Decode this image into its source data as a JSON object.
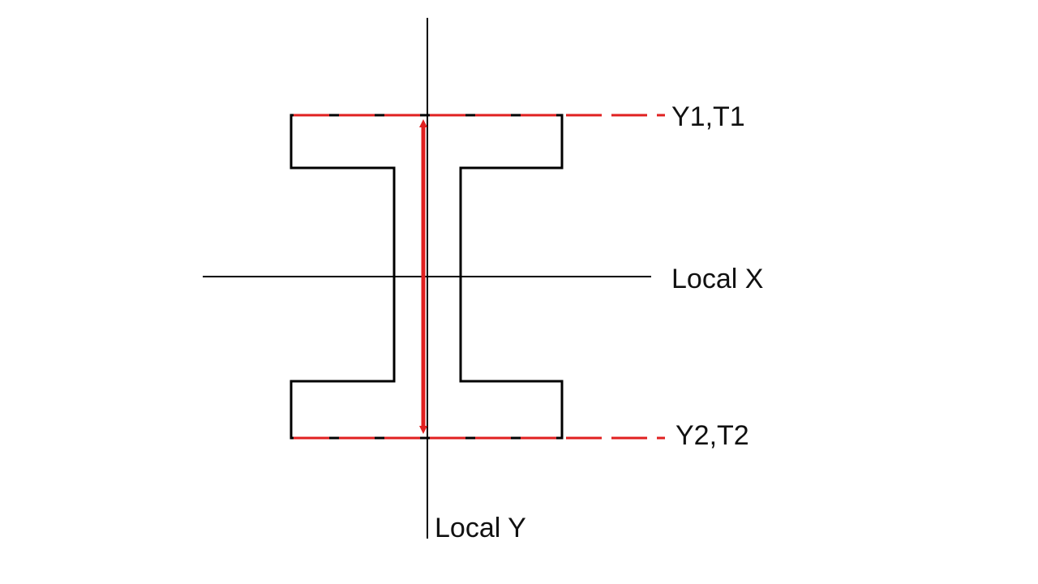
{
  "labels": {
    "local_x": "Local X",
    "local_y": "Local Y",
    "top_line": "Y1,T1",
    "bottom_line": "Y2,T2"
  },
  "colors": {
    "background": "#ffffff",
    "outline": "#000000",
    "highlight": "#e02020"
  }
}
